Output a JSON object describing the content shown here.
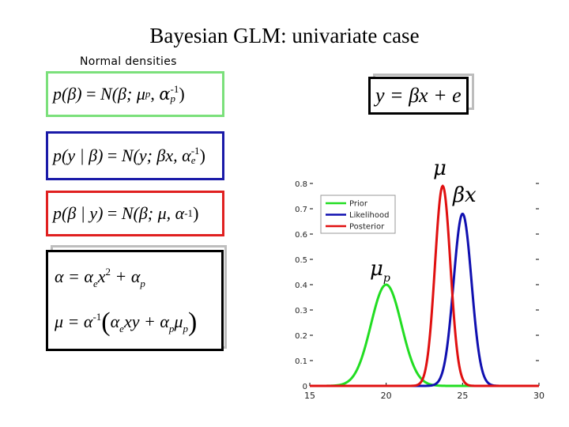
{
  "slide": {
    "title": "Bayesian GLM: univariate case",
    "subtitle": "Normal densities"
  },
  "equations": {
    "prior": {
      "lhs": "p(β)",
      "rhs": "N(β; μ",
      "sub_mu": "p",
      "alpha": "α",
      "sup_inv": "-1",
      "sub_alpha": "p",
      "close": ")"
    },
    "likelihood": {
      "lhs": "p(y | β)",
      "rhs": "N(y; βx, α",
      "sup_inv": "-1",
      "sub_alpha": "e",
      "close": ")"
    },
    "posterior": {
      "lhs": "p(β | y)",
      "rhs": "N(β; μ, α",
      "sup_inv": "-1",
      "close": ")"
    },
    "alpha_line": {
      "text_a": "α = α",
      "sub_e": "e",
      "x": "x",
      "sup2": "2",
      "plus": " + α",
      "sub_p": "p"
    },
    "mu_line": {
      "text_a": "μ = α",
      "sup_inv": "-1",
      "paren_open": "(",
      "a_e": "α",
      "sub_e": "e",
      "xy": "xy + α",
      "sub_p1": "p",
      "mu": "μ",
      "sub_p2": "p",
      "paren_close": ")"
    },
    "model": "y = βx + e"
  },
  "annotations": {
    "mu": "μ",
    "beta_x": "βx",
    "mu_p": "μ",
    "mu_p_sub": "p"
  },
  "chart_data": {
    "type": "line",
    "xlim": [
      15,
      30
    ],
    "ylim": [
      0,
      0.8
    ],
    "x_ticks": [
      15,
      20,
      25,
      30
    ],
    "x_tick_labels": [
      "15",
      "20",
      "25",
      "30"
    ],
    "y_ticks": [
      0,
      0.1,
      0.2,
      0.3,
      0.4,
      0.5,
      0.6,
      0.7,
      0.8
    ],
    "y_tick_labels": [
      "0",
      "0.1",
      "0.2",
      "0.3",
      "0.4",
      "0.5",
      "0.6",
      "0.7",
      "0.8"
    ],
    "legend": {
      "placement": "top-left",
      "entries": [
        "Prior",
        "Likelihood",
        "Posterior"
      ]
    },
    "series": [
      {
        "name": "Prior",
        "color": "#22dd22",
        "mean": 20,
        "peak": 0.4
      },
      {
        "name": "Likelihood",
        "color": "#1010b0",
        "mean": 25,
        "peak": 0.68
      },
      {
        "name": "Posterior",
        "color": "#e01010",
        "mean": 23.7,
        "peak": 0.79
      }
    ]
  }
}
